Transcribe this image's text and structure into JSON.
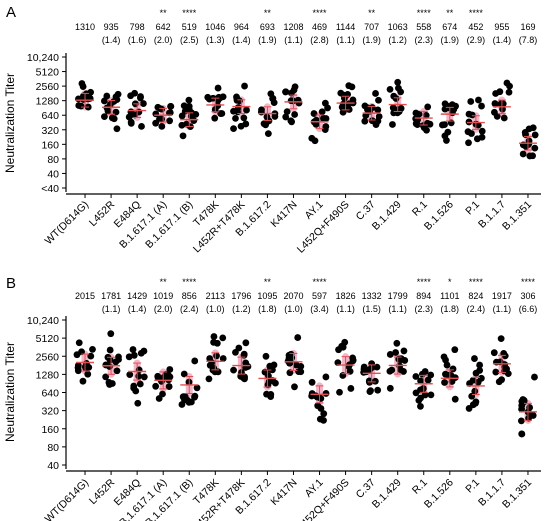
{
  "chart_data": [
    {
      "panel_label": "A",
      "type": "scatter",
      "scale": "log2",
      "ylabel": "Neutralization Titer",
      "yticks": [
        "10,240",
        "5120",
        "2560",
        "1280",
        "640",
        "320",
        "160",
        "80",
        "40",
        "<40"
      ],
      "ytick_values": [
        10240,
        5120,
        2560,
        1280,
        640,
        320,
        160,
        80,
        40,
        20
      ],
      "ylim": [
        20,
        10240
      ],
      "categories": [
        "WT(D614G)",
        "L452R",
        "E484Q",
        "B.1.617.1 (A)",
        "B.1.617.1 (B)",
        "T478K",
        "L452R+T478K",
        "B.1.617.2",
        "K417N",
        "AY.1",
        "L452Q+F490S",
        "C.37",
        "B.1.429",
        "R.1",
        "B.1.526",
        "P.1",
        "B.1.1.7",
        "B.1.351"
      ],
      "significance": [
        "",
        "",
        "",
        "**",
        "****",
        "",
        "",
        "**",
        "",
        "****",
        "",
        "**",
        "",
        "****",
        "**",
        "****",
        "",
        ""
      ],
      "gmt": [
        "1310",
        "935",
        "798",
        "642",
        "519",
        "1046",
        "964",
        "693",
        "1208",
        "469",
        "1144",
        "707",
        "1063",
        "558",
        "674",
        "452",
        "955",
        "169"
      ],
      "fold": [
        "",
        "(1.4)",
        "(1.6)",
        "(2.0)",
        "(2.5)",
        "(1.3)",
        "(1.4)",
        "(1.9)",
        "(1.1)",
        "(2.8)",
        "(1.1)",
        "(1.9)",
        "(1.2)",
        "(2.3)",
        "(1.9)",
        "(2.9)",
        "(1.4)",
        "(7.8)"
      ],
      "gmt_values": [
        1310,
        935,
        798,
        642,
        519,
        1046,
        964,
        693,
        1208,
        469,
        1144,
        707,
        1063,
        558,
        674,
        452,
        955,
        169
      ],
      "point_color": "#000000",
      "mean_color": "#e05050",
      "ci_color": "#f2b5c8"
    },
    {
      "panel_label": "B",
      "type": "scatter",
      "scale": "log2",
      "ylabel": "Neutralization Titer",
      "yticks": [
        "10,240",
        "5120",
        "2560",
        "1280",
        "640",
        "320",
        "160",
        "80",
        "40"
      ],
      "ytick_values": [
        10240,
        5120,
        2560,
        1280,
        640,
        320,
        160,
        80,
        40
      ],
      "ylim": [
        40,
        10240
      ],
      "categories": [
        "WT(D614G)",
        "L452R",
        "E484Q",
        "B.1.617.1 (A)",
        "B.1.617.1 (B)",
        "T478K",
        "L452R+T478K",
        "B.1.617.2",
        "K417N",
        "AY.1",
        "L452Q+F490S",
        "C.37",
        "B.1.429",
        "R.1",
        "B.1.526",
        "P.1",
        "B.1.1.7",
        "B.1.351"
      ],
      "significance": [
        "",
        "",
        "",
        "**",
        "****",
        "",
        "",
        "**",
        "",
        "****",
        "",
        "",
        "",
        "****",
        "*",
        "****",
        "",
        "****"
      ],
      "gmt": [
        "2015",
        "1781",
        "1429",
        "1019",
        "856",
        "2113",
        "1796",
        "1095",
        "2070",
        "597",
        "1826",
        "1332",
        "1799",
        "894",
        "1101",
        "824",
        "1917",
        "306"
      ],
      "fold": [
        "",
        "(1.1)",
        "(1.4)",
        "(2.0)",
        "(2.4)",
        "(1.0)",
        "(1.2)",
        "(1.8)",
        "(1.0)",
        "(3.4)",
        "(1.1)",
        "(1.5)",
        "(1.1)",
        "(2.3)",
        "(1.8)",
        "(2.4)",
        "(1.1)",
        "(6.6)"
      ],
      "gmt_values": [
        2015,
        1781,
        1429,
        1019,
        856,
        2113,
        1796,
        1095,
        2070,
        597,
        1826,
        1332,
        1799,
        894,
        1101,
        824,
        1917,
        306
      ],
      "point_color": "#000000",
      "mean_color": "#e05050",
      "ci_color": "#f2b5c8"
    }
  ],
  "top_significance_A_last": "****"
}
